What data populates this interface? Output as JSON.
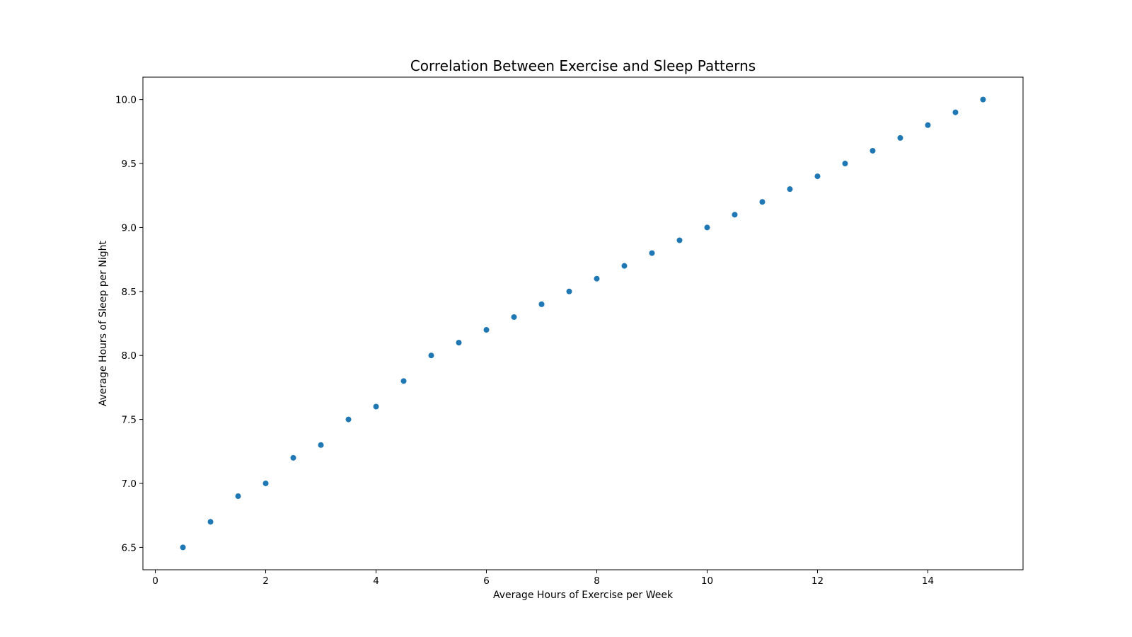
{
  "chart_data": {
    "type": "scatter",
    "title": "Correlation Between Exercise and Sleep Patterns",
    "xlabel": "Average Hours of Exercise per Week",
    "ylabel": "Average Hours of Sleep per Night",
    "xlim": [
      -0.225,
      15.725
    ],
    "ylim": [
      6.325,
      10.175
    ],
    "xticks": [
      0,
      2,
      4,
      6,
      8,
      10,
      12,
      14
    ],
    "xtick_labels": [
      "0",
      "2",
      "4",
      "6",
      "8",
      "10",
      "12",
      "14"
    ],
    "yticks": [
      6.5,
      7.0,
      7.5,
      8.0,
      8.5,
      9.0,
      9.5,
      10.0
    ],
    "ytick_labels": [
      "6.5",
      "7.0",
      "7.5",
      "8.0",
      "8.5",
      "9.0",
      "9.5",
      "10.0"
    ],
    "grid": false,
    "color": "#1f77b4",
    "series": [
      {
        "x": [
          0.5,
          1.0,
          1.5,
          2.0,
          2.5,
          3.0,
          3.5,
          4.0,
          4.5,
          5.0,
          5.5,
          6.0,
          6.5,
          7.0,
          7.5,
          8.0,
          8.5,
          9.0,
          9.5,
          10.0,
          10.5,
          11.0,
          11.5,
          12.0,
          12.5,
          13.0,
          13.5,
          14.0,
          14.5,
          15.0
        ],
        "y": [
          6.5,
          6.7,
          6.9,
          7.0,
          7.2,
          7.3,
          7.5,
          7.6,
          7.8,
          8.0,
          8.1,
          8.2,
          8.3,
          8.4,
          8.5,
          8.6,
          8.7,
          8.8,
          8.9,
          9.0,
          9.1,
          9.2,
          9.3,
          9.4,
          9.5,
          9.6,
          9.7,
          9.8,
          9.9,
          10.0
        ]
      }
    ]
  }
}
